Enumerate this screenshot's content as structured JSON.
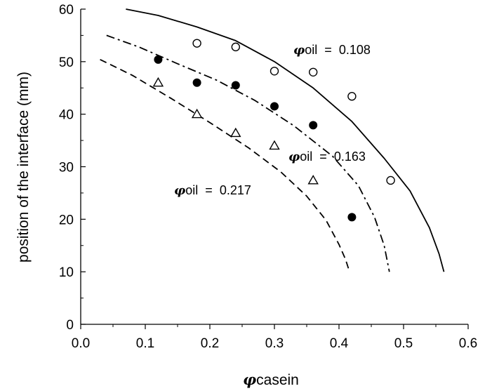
{
  "chart_data": {
    "type": "scatter",
    "xlabel": {
      "symbol": "φ",
      "text": "casein"
    },
    "ylabel": "position of the interface (mm)",
    "xlim": [
      0.0,
      0.6
    ],
    "ylim": [
      0,
      60
    ],
    "xticks": [
      "0.0",
      "0.1",
      "0.2",
      "0.3",
      "0.4",
      "0.5",
      "0.6"
    ],
    "yticks": [
      "0",
      "10",
      "20",
      "30",
      "40",
      "50",
      "60"
    ],
    "xtick_values": [
      0.0,
      0.1,
      0.2,
      0.3,
      0.4,
      0.5,
      0.6
    ],
    "ytick_values": [
      0,
      10,
      20,
      30,
      40,
      50,
      60
    ],
    "grid": false,
    "series": [
      {
        "marker": "open-circle",
        "line_style": "solid",
        "points": [
          {
            "x": 0.18,
            "y": 53.5
          },
          {
            "x": 0.24,
            "y": 52.8
          },
          {
            "x": 0.3,
            "y": 48.2
          },
          {
            "x": 0.36,
            "y": 48.0
          },
          {
            "x": 0.42,
            "y": 43.4
          },
          {
            "x": 0.48,
            "y": 27.4
          }
        ],
        "curve": [
          [
            0.07,
            60.0
          ],
          [
            0.12,
            58.8
          ],
          [
            0.18,
            56.6
          ],
          [
            0.24,
            54.0
          ],
          [
            0.3,
            50.0
          ],
          [
            0.36,
            45.0
          ],
          [
            0.42,
            38.6
          ],
          [
            0.47,
            31.6
          ],
          [
            0.51,
            25.4
          ],
          [
            0.54,
            18.4
          ],
          [
            0.555,
            13.4
          ],
          [
            0.5625,
            10.0
          ]
        ]
      },
      {
        "marker": "filled-circle",
        "line_style": "dash-dot",
        "points": [
          {
            "x": 0.12,
            "y": 50.4
          },
          {
            "x": 0.18,
            "y": 46.0
          },
          {
            "x": 0.24,
            "y": 45.5
          },
          {
            "x": 0.3,
            "y": 41.5
          },
          {
            "x": 0.36,
            "y": 37.9
          },
          {
            "x": 0.42,
            "y": 20.4
          }
        ],
        "curve": [
          [
            0.04,
            55.0
          ],
          [
            0.09,
            52.8
          ],
          [
            0.15,
            49.6
          ],
          [
            0.21,
            46.5
          ],
          [
            0.27,
            42.6
          ],
          [
            0.33,
            37.8
          ],
          [
            0.39,
            32.0
          ],
          [
            0.43,
            26.4
          ],
          [
            0.455,
            20.4
          ],
          [
            0.47,
            15.0
          ],
          [
            0.478,
            10.0
          ]
        ]
      },
      {
        "marker": "open-triangle",
        "line_style": "dashed",
        "points": [
          {
            "x": 0.12,
            "y": 46.0
          },
          {
            "x": 0.18,
            "y": 40.0
          },
          {
            "x": 0.24,
            "y": 36.4
          },
          {
            "x": 0.3,
            "y": 34.0
          },
          {
            "x": 0.36,
            "y": 27.4
          }
        ],
        "curve": [
          [
            0.03,
            50.4
          ],
          [
            0.08,
            47.4
          ],
          [
            0.14,
            43.0
          ],
          [
            0.2,
            38.4
          ],
          [
            0.26,
            33.6
          ],
          [
            0.31,
            29.0
          ],
          [
            0.35,
            24.4
          ],
          [
            0.38,
            19.8
          ],
          [
            0.4,
            15.2
          ],
          [
            0.41,
            12.4
          ],
          [
            0.415,
            10.5
          ]
        ]
      }
    ],
    "annotations": [
      {
        "symbol": "φ",
        "text": "oil  =  0.108"
      },
      {
        "symbol": "φ",
        "text": "oil  =  0.163"
      },
      {
        "symbol": "φ",
        "text": "oil  =  0.217"
      }
    ]
  }
}
